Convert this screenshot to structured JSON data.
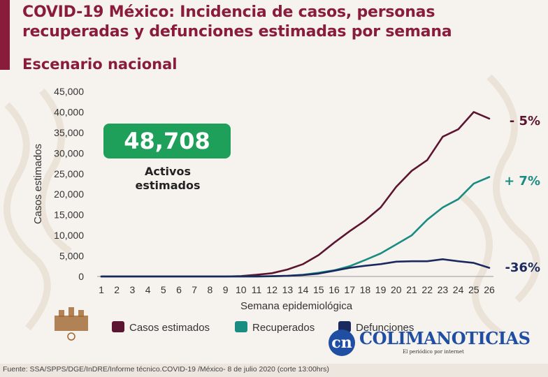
{
  "header": {
    "title": "COVID-19 México: Incidencia de casos, personas recuperadas y defunciones estimadas por semana",
    "subtitle": "Escenario nacional"
  },
  "highlight": {
    "value": "48,708",
    "label": "Activos estimados"
  },
  "colors": {
    "brand": "#8a1c3b",
    "casos": "#5c1530",
    "recuperados": "#1a8c82",
    "defunciones": "#1b2a5e",
    "badge": "#1ea05a",
    "logo": "#1f4ea3"
  },
  "chart_data": {
    "type": "line",
    "xlabel": "Semana epidemiológica",
    "ylabel": "Casos estimados",
    "ylim": [
      0,
      45000
    ],
    "y_ticks": [
      "0",
      "5,000",
      "10,000",
      "15,000",
      "20,000",
      "25,000",
      "30,000",
      "35,000",
      "40,000",
      "45,000"
    ],
    "x": [
      1,
      2,
      3,
      4,
      5,
      6,
      7,
      8,
      9,
      10,
      11,
      12,
      13,
      14,
      15,
      16,
      17,
      18,
      19,
      20,
      21,
      22,
      23,
      24,
      25,
      26
    ],
    "series": [
      {
        "name": "Casos estimados",
        "color": "#5c1530",
        "change": "- 5%",
        "values": [
          0,
          0,
          0,
          0,
          0,
          0,
          0,
          0,
          0,
          100,
          400,
          800,
          1700,
          3000,
          5200,
          8200,
          11000,
          13600,
          16800,
          21800,
          25700,
          28300,
          34000,
          35800,
          40000,
          38400
        ]
      },
      {
        "name": "Recuperados",
        "color": "#1a8c82",
        "change": "+ 7%",
        "values": [
          0,
          0,
          0,
          0,
          0,
          0,
          0,
          0,
          0,
          0,
          0,
          50,
          150,
          400,
          900,
          1500,
          2500,
          4000,
          5600,
          7800,
          10000,
          13800,
          16800,
          18800,
          22600,
          24200
        ]
      },
      {
        "name": "Defunciones",
        "color": "#1b2a5e",
        "change": "-36%",
        "values": [
          0,
          0,
          0,
          0,
          0,
          0,
          0,
          0,
          0,
          0,
          20,
          60,
          150,
          350,
          700,
          1400,
          2100,
          2600,
          3000,
          3600,
          3700,
          3700,
          4200,
          3700,
          3300,
          2100
        ]
      }
    ]
  },
  "brand": {
    "initials": "cn",
    "name": "COLIMANOTICIAS",
    "tagline": "El periódico por internet"
  },
  "footer": {
    "source": "Fuente: SSA/SPPS/DGE/InDRE/Informe técnico.COVID-19 /México- 8 de julio 2020 (corte 13:00hrs)"
  }
}
